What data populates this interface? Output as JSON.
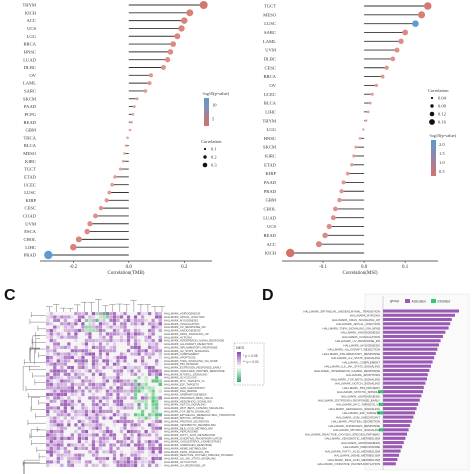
{
  "panels": {
    "C": {
      "letter": "C"
    },
    "D": {
      "letter": "D"
    }
  },
  "chart_data": [
    {
      "type": "scatter",
      "variant": "lollipop",
      "xlabel": "Correlation(TMB)",
      "xlim": [
        -0.32,
        0.3
      ],
      "xticks": [
        "-0.2",
        "0.0",
        "0.2"
      ],
      "xtick_values": [
        -0.2,
        0.0,
        0.2
      ],
      "categories": [
        "THYM",
        "KICH",
        "ACC",
        "UCS",
        "LGG",
        "BRCA",
        "HNSC",
        "LUAD",
        "DLBC",
        "OV",
        "LAML",
        "SARC",
        "SKCM",
        "PAAD",
        "PCPG",
        "READ",
        "GBM",
        "THCA",
        "BLCA",
        "MESO",
        "KIRC",
        "TGCT",
        "ETAD",
        "UCEC",
        "LUSC",
        "KIRP",
        "CESC",
        "COAD",
        "UVM",
        "ESCA",
        "CHOL",
        "LIHC",
        "PRAD"
      ],
      "values": [
        0.27,
        0.22,
        0.2,
        0.19,
        0.175,
        0.16,
        0.15,
        0.14,
        0.125,
        0.08,
        0.075,
        0.06,
        0.03,
        0.02,
        0.015,
        0.01,
        0.005,
        -0.005,
        -0.01,
        -0.015,
        -0.02,
        -0.03,
        -0.05,
        -0.06,
        -0.07,
        -0.08,
        -0.1,
        -0.12,
        -0.14,
        -0.15,
        -0.18,
        -0.2,
        -0.29
      ],
      "legend_color_title": "-log10(p-value)",
      "legend_color_ticks": [
        "10",
        "5"
      ],
      "legend_size_title": "Correlation",
      "legend_size_ticks": [
        "0.1",
        "0.2",
        "0.3"
      ],
      "colors": {
        "low": "#d4716b",
        "high": "#5b9bd5",
        "stem": "#333333"
      }
    },
    {
      "type": "scatter",
      "variant": "lollipop",
      "xlabel": "Correlation(MSI)",
      "xlim": [
        -0.2,
        0.18
      ],
      "xticks": [
        "-0.1",
        "0.0",
        "0.1"
      ],
      "xtick_values": [
        -0.1,
        0.0,
        0.1
      ],
      "categories": [
        "TGCT",
        "MESO",
        "LUSC",
        "SARC",
        "LAML",
        "UVM",
        "DLBC",
        "CESC",
        "BRCA",
        "OV",
        "UCEC",
        "BLCA",
        "LIHC",
        "THYM",
        "LGG",
        "HNSC",
        "SKCM",
        "KIRC",
        "ETAD",
        "KIRP",
        "PAAD",
        "PRAD",
        "GBM",
        "CHOL",
        "LUAD",
        "UCS",
        "READ",
        "ACC",
        "KICH"
      ],
      "values": [
        0.155,
        0.14,
        0.125,
        0.1,
        0.09,
        0.08,
        0.07,
        0.055,
        0.045,
        0.03,
        0.02,
        0.015,
        0.01,
        0.005,
        -0.002,
        -0.01,
        -0.02,
        -0.025,
        -0.03,
        -0.04,
        -0.05,
        -0.055,
        -0.06,
        -0.07,
        -0.075,
        -0.085,
        -0.095,
        -0.11,
        -0.18
      ],
      "legend_size_title": "Correlation",
      "legend_size_ticks": [
        "0.04",
        "0.08",
        "0.12",
        "0.16"
      ],
      "legend_color_title": "-log10(p-value)",
      "legend_color_ticks": [
        "2.0",
        "1.5",
        "1.0",
        "0.5"
      ],
      "colors": {
        "low": "#d4716b",
        "high": "#5b9bd5",
        "stem": "#333333"
      }
    },
    {
      "type": "heatmap",
      "legend_title": "NES",
      "legend_items": [
        "* p < 0.05",
        "** p < 0.01"
      ],
      "row_labels": [
        "HALLMARK_ADIPOGENESIS",
        "HALLMARK_APICAL_JUNCTION",
        "HALLMARK_MYOGENESIS",
        "HALLMARK_COAGULATION",
        "HALLMARK_UV_RESPONSE_DN",
        "HALLMARK_ANGIOGENESIS",
        "HALLMARK_KRAS_SIGNALING_UP",
        "HALLMARK_HYPOXIA",
        "HALLMARK_INTERFERON_ALPHA_RESPONSE",
        "HALLMARK_ALLOGRAFT_REJECTION",
        "HALLMARK_INFLAMMATORY_RESPONSE",
        "HALLMARK_IL2_STAT5_SIGNALING",
        "HALLMARK_COMPLEMENT",
        "HALLMARK_APOPTOSIS",
        "HALLMARK_TNFA_SIGNALING_VIA_NFKB",
        "HALLMARK_P53_PATHWAY",
        "HALLMARK_ESTROGEN_RESPONSE_EARLY",
        "HALLMARK_UNFOLDED_PROTEIN_RESPONSE",
        "HALLMARK_MTORC1_SIGNALING",
        "HALLMARK_GLYCOLYSIS",
        "HALLMARK_MYC_TARGETS_V1",
        "HALLMARK_E2F_TARGETS",
        "HALLMARK_G2M_CHECKPOINT",
        "HALLMARK_DNA_REPAIR",
        "HALLMARK_SPERMATOGENESIS",
        "HALLMARK_PANCREAS_BETA_CELLS",
        "HALLMARK_HEDGEHOG_SIGNALING",
        "HALLMARK_NOTCH_SIGNALING",
        "HALLMARK_WNT_BETA_CATENIN_SIGNALING",
        "HALLMARK_TGF_BETA_SIGNALING",
        "HALLMARK_EPITHELIAL_MESENCHYMAL_TRANSITION",
        "HALLMARK_MITOTIC_SPINDLE",
        "HALLMARK_PROTEIN_SECRETION",
        "HALLMARK_XENOBIOTIC_METABOLISM",
        "HALLMARK_BILE_ACID_METABOLISM",
        "HALLMARK_PEROXISOME",
        "HALLMARK_FATTY_ACID_METABOLISM",
        "HALLMARK_OXIDATIVE_PHOSPHORYLATION",
        "HALLMARK_CHOLESTEROL_HOMEOSTASIS",
        "HALLMARK_ANDROGEN_RESPONSE",
        "HALLMARK_HEME_METABOLISM",
        "HALLMARK_KRAS_SIGNALING_DN",
        "HALLMARK_REACTIVE_OXYGEN_SPECIES_PATHWAY",
        "HALLMARK_IL6_JAK_STAT3_SIGNALING",
        "HALLMARK_GLYCOLYSIS",
        "HALLMARK_UV_RESPONSE_UP"
      ],
      "colors": {
        "positive": "#8e44ad",
        "negative": "#27ae60",
        "neutral": "#f4f4f4"
      }
    },
    {
      "type": "bar",
      "orientation": "horizontal",
      "legend_title": "group",
      "legend_items": [
        "Activation",
        "Inhibited"
      ],
      "categories": [
        "HALLMARK_EPITHELIAL_MESENCHYMAL_TRANSITION",
        "HALLMARK_HYPOXIA",
        "HALLMARK_KRAS_SIGNALING_UP",
        "HALLMARK_APICAL_JUNCTION",
        "HALLMARK_TNFA_SIGNALING_VIA_NFKB",
        "HALLMARK_ANGIOGENESIS",
        "HALLMARK_COAGULATION",
        "HALLMARK_UV_RESPONSE_DN",
        "HALLMARK_MYOGENESIS",
        "HALLMARK_ALLOGRAFT_REJECTION",
        "HALLMARK_INFLAMMATORY_RESPONSE",
        "HALLMARK_IL2_STAT5_SIGNALING",
        "HALLMARK_COMPLEMENT",
        "HALLMARK_IL6_JAK_STAT3_SIGNALING",
        "HALLMARK_INTERFERON_GAMMA_RESPONSE",
        "HALLMARK_APOPTOSIS",
        "HALLMARK_TGF_BETA_SIGNALING",
        "HALLMARK_NOTCH_SIGNALING",
        "HALLMARK_P53_PATHWAY",
        "HALLMARK_MITOTIC_SPINDLE",
        "HALLMARK_ADIPOGENESIS",
        "HALLMARK_ESTROGEN_RESPONSE_EARLY",
        "HALLMARK_MYC_TARGETS_V2",
        "HALLMARK_HEDGEHOG_SIGNALING",
        "HALLMARK_E2F_TARGETS",
        "HALLMARK_G2M_CHECKPOINT",
        "HALLMARK_PROTEIN_SECRETION",
        "HALLMARK_ANDROGEN_RESPONSE",
        "HALLMARK_MTORC1_SIGNALING",
        "HALLMARK_REACTIVE_OXYGEN_SPECIES_PATHWAY",
        "HALLMARK_XENOBIOTIC_METABOLISM",
        "HALLMARK_ADIPOGENESIS",
        "HALLMARK_PEROXISOME",
        "HALLMARK_FATTY_ACID_METABOLISM",
        "HALLMARK_HEME_METABOLISM",
        "HALLMARK_BILE_ACID_METABOLISM",
        "HALLMARK_OXIDATIVE_PHOSPHORYLATION"
      ],
      "values": [
        0.95,
        0.9,
        0.86,
        0.84,
        0.82,
        0.78,
        0.75,
        0.72,
        0.7,
        0.68,
        0.66,
        0.64,
        0.62,
        0.6,
        0.58,
        0.56,
        0.55,
        0.53,
        0.51,
        0.5,
        0.48,
        0.46,
        0.44,
        0.42,
        0.4,
        0.38,
        0.36,
        0.34,
        0.32,
        0.3,
        0.28,
        0.26,
        0.24,
        0.22,
        0.2,
        0.18,
        0.16
      ],
      "negative_values": [
        0,
        0,
        0,
        0,
        0,
        0,
        0,
        0,
        0,
        0,
        0,
        0,
        0,
        0,
        0,
        0,
        0,
        0,
        0,
        -0.06,
        0,
        0,
        -0.05,
        0,
        -0.07,
        0,
        0,
        0,
        -0.05,
        0,
        0,
        0,
        0,
        0,
        0,
        0,
        0
      ],
      "colors": {
        "activation": "#9b59b6",
        "inhibited": "#2ecc71"
      }
    }
  ]
}
